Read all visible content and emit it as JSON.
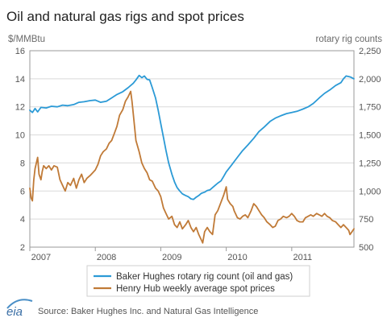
{
  "chart_data": {
    "type": "line",
    "title": "Oil and natural gas rigs and spot prices",
    "ylabel_left": "$/MMBtu",
    "ylabel_right": "rotary rig counts",
    "x_ticks": [
      "2007",
      "2008",
      "2009",
      "2010",
      "2011"
    ],
    "xlim": [
      2007.0,
      2011.95
    ],
    "ylim_left": [
      2,
      16
    ],
    "yticks_left": [
      "2",
      "4",
      "6",
      "8",
      "10",
      "12",
      "14",
      "16"
    ],
    "ylim_right": [
      500,
      2250
    ],
    "yticks_right": [
      "500",
      "750",
      "1,000",
      "1,250",
      "1,500",
      "1,750",
      "2,000",
      "2,250"
    ],
    "grid": true,
    "legend_position": "bottom",
    "series": [
      {
        "name": "Baker Hughes rotary rig count (oil and gas)",
        "axis": "right",
        "color": "#2b9ad6",
        "points": [
          [
            2007.0,
            1720
          ],
          [
            2007.04,
            1700
          ],
          [
            2007.08,
            1735
          ],
          [
            2007.12,
            1705
          ],
          [
            2007.17,
            1745
          ],
          [
            2007.25,
            1740
          ],
          [
            2007.33,
            1755
          ],
          [
            2007.42,
            1750
          ],
          [
            2007.5,
            1765
          ],
          [
            2007.58,
            1760
          ],
          [
            2007.67,
            1770
          ],
          [
            2007.75,
            1790
          ],
          [
            2007.83,
            1795
          ],
          [
            2007.92,
            1805
          ],
          [
            2008.0,
            1810
          ],
          [
            2008.08,
            1790
          ],
          [
            2008.17,
            1800
          ],
          [
            2008.25,
            1830
          ],
          [
            2008.33,
            1860
          ],
          [
            2008.42,
            1885
          ],
          [
            2008.5,
            1920
          ],
          [
            2008.58,
            1960
          ],
          [
            2008.62,
            1990
          ],
          [
            2008.67,
            2030
          ],
          [
            2008.71,
            2010
          ],
          [
            2008.75,
            2025
          ],
          [
            2008.79,
            1995
          ],
          [
            2008.83,
            1990
          ],
          [
            2008.87,
            1920
          ],
          [
            2008.92,
            1830
          ],
          [
            2008.96,
            1720
          ],
          [
            2009.0,
            1600
          ],
          [
            2009.04,
            1480
          ],
          [
            2009.08,
            1360
          ],
          [
            2009.12,
            1250
          ],
          [
            2009.17,
            1150
          ],
          [
            2009.21,
            1080
          ],
          [
            2009.25,
            1030
          ],
          [
            2009.29,
            1000
          ],
          [
            2009.33,
            975
          ],
          [
            2009.38,
            960
          ],
          [
            2009.42,
            950
          ],
          [
            2009.46,
            930
          ],
          [
            2009.5,
            925
          ],
          [
            2009.54,
            945
          ],
          [
            2009.58,
            960
          ],
          [
            2009.62,
            980
          ],
          [
            2009.67,
            990
          ],
          [
            2009.71,
            1005
          ],
          [
            2009.75,
            1010
          ],
          [
            2009.79,
            1030
          ],
          [
            2009.83,
            1050
          ],
          [
            2009.87,
            1070
          ],
          [
            2009.92,
            1090
          ],
          [
            2009.96,
            1130
          ],
          [
            2010.0,
            1170
          ],
          [
            2010.08,
            1230
          ],
          [
            2010.17,
            1300
          ],
          [
            2010.25,
            1360
          ],
          [
            2010.33,
            1410
          ],
          [
            2010.42,
            1470
          ],
          [
            2010.5,
            1530
          ],
          [
            2010.58,
            1570
          ],
          [
            2010.67,
            1620
          ],
          [
            2010.75,
            1650
          ],
          [
            2010.83,
            1670
          ],
          [
            2010.92,
            1690
          ],
          [
            2011.0,
            1700
          ],
          [
            2011.08,
            1710
          ],
          [
            2011.17,
            1730
          ],
          [
            2011.25,
            1750
          ],
          [
            2011.33,
            1780
          ],
          [
            2011.42,
            1830
          ],
          [
            2011.5,
            1870
          ],
          [
            2011.58,
            1900
          ],
          [
            2011.67,
            1940
          ],
          [
            2011.75,
            1965
          ],
          [
            2011.79,
            2000
          ],
          [
            2011.83,
            2025
          ],
          [
            2011.87,
            2020
          ],
          [
            2011.9,
            2015
          ],
          [
            2011.95,
            2000
          ]
        ]
      },
      {
        "name": "Henry Hub weekly average spot prices",
        "axis": "left",
        "color": "#c07a37",
        "points": [
          [
            2007.0,
            6.2
          ],
          [
            2007.02,
            5.5
          ],
          [
            2007.04,
            5.3
          ],
          [
            2007.06,
            6.8
          ],
          [
            2007.08,
            7.6
          ],
          [
            2007.1,
            8.0
          ],
          [
            2007.12,
            8.4
          ],
          [
            2007.14,
            7.2
          ],
          [
            2007.17,
            6.8
          ],
          [
            2007.19,
            7.4
          ],
          [
            2007.21,
            7.8
          ],
          [
            2007.25,
            7.6
          ],
          [
            2007.29,
            7.8
          ],
          [
            2007.33,
            7.5
          ],
          [
            2007.37,
            7.8
          ],
          [
            2007.42,
            7.7
          ],
          [
            2007.46,
            6.8
          ],
          [
            2007.5,
            6.4
          ],
          [
            2007.54,
            6.0
          ],
          [
            2007.58,
            6.6
          ],
          [
            2007.62,
            6.4
          ],
          [
            2007.67,
            6.9
          ],
          [
            2007.71,
            6.2
          ],
          [
            2007.75,
            6.8
          ],
          [
            2007.79,
            7.2
          ],
          [
            2007.83,
            6.6
          ],
          [
            2007.87,
            6.9
          ],
          [
            2007.92,
            7.1
          ],
          [
            2007.96,
            7.3
          ],
          [
            2008.0,
            7.5
          ],
          [
            2008.04,
            7.9
          ],
          [
            2008.08,
            8.5
          ],
          [
            2008.12,
            8.8
          ],
          [
            2008.17,
            9.0
          ],
          [
            2008.21,
            9.4
          ],
          [
            2008.25,
            9.6
          ],
          [
            2008.29,
            10.1
          ],
          [
            2008.33,
            10.6
          ],
          [
            2008.37,
            11.4
          ],
          [
            2008.42,
            11.8
          ],
          [
            2008.46,
            12.4
          ],
          [
            2008.5,
            12.7
          ],
          [
            2008.54,
            13.1
          ],
          [
            2008.56,
            12.4
          ],
          [
            2008.58,
            11.5
          ],
          [
            2008.62,
            9.6
          ],
          [
            2008.67,
            8.8
          ],
          [
            2008.71,
            8.0
          ],
          [
            2008.75,
            7.6
          ],
          [
            2008.79,
            7.3
          ],
          [
            2008.83,
            6.8
          ],
          [
            2008.87,
            6.7
          ],
          [
            2008.92,
            6.2
          ],
          [
            2008.96,
            6.0
          ],
          [
            2009.0,
            5.6
          ],
          [
            2009.04,
            4.8
          ],
          [
            2009.08,
            4.4
          ],
          [
            2009.12,
            4.0
          ],
          [
            2009.17,
            4.2
          ],
          [
            2009.21,
            3.6
          ],
          [
            2009.25,
            3.4
          ],
          [
            2009.29,
            3.8
          ],
          [
            2009.33,
            3.3
          ],
          [
            2009.38,
            3.6
          ],
          [
            2009.42,
            3.9
          ],
          [
            2009.46,
            3.4
          ],
          [
            2009.5,
            3.1
          ],
          [
            2009.54,
            3.4
          ],
          [
            2009.58,
            2.9
          ],
          [
            2009.62,
            2.5
          ],
          [
            2009.64,
            2.3
          ],
          [
            2009.67,
            3.1
          ],
          [
            2009.71,
            3.4
          ],
          [
            2009.75,
            3.1
          ],
          [
            2009.79,
            2.9
          ],
          [
            2009.83,
            4.3
          ],
          [
            2009.87,
            4.6
          ],
          [
            2009.92,
            5.2
          ],
          [
            2009.96,
            5.7
          ],
          [
            2010.0,
            6.3
          ],
          [
            2010.02,
            5.4
          ],
          [
            2010.06,
            5.1
          ],
          [
            2010.1,
            4.9
          ],
          [
            2010.12,
            4.6
          ],
          [
            2010.17,
            4.1
          ],
          [
            2010.21,
            4.0
          ],
          [
            2010.25,
            4.2
          ],
          [
            2010.29,
            4.3
          ],
          [
            2010.33,
            4.1
          ],
          [
            2010.38,
            4.6
          ],
          [
            2010.42,
            5.1
          ],
          [
            2010.46,
            4.9
          ],
          [
            2010.5,
            4.6
          ],
          [
            2010.54,
            4.3
          ],
          [
            2010.58,
            4.1
          ],
          [
            2010.62,
            3.8
          ],
          [
            2010.67,
            3.6
          ],
          [
            2010.71,
            3.4
          ],
          [
            2010.75,
            3.5
          ],
          [
            2010.79,
            3.9
          ],
          [
            2010.83,
            4.0
          ],
          [
            2010.87,
            4.2
          ],
          [
            2010.92,
            4.1
          ],
          [
            2010.96,
            4.2
          ],
          [
            2011.0,
            4.4
          ],
          [
            2011.04,
            4.2
          ],
          [
            2011.08,
            3.9
          ],
          [
            2011.12,
            3.8
          ],
          [
            2011.17,
            3.8
          ],
          [
            2011.21,
            4.1
          ],
          [
            2011.25,
            4.2
          ],
          [
            2011.29,
            4.3
          ],
          [
            2011.33,
            4.2
          ],
          [
            2011.38,
            4.4
          ],
          [
            2011.42,
            4.3
          ],
          [
            2011.46,
            4.2
          ],
          [
            2011.5,
            4.4
          ],
          [
            2011.54,
            4.2
          ],
          [
            2011.58,
            4.1
          ],
          [
            2011.62,
            3.9
          ],
          [
            2011.67,
            3.8
          ],
          [
            2011.71,
            3.6
          ],
          [
            2011.75,
            3.4
          ],
          [
            2011.79,
            3.6
          ],
          [
            2011.83,
            3.4
          ],
          [
            2011.87,
            3.2
          ],
          [
            2011.89,
            2.9
          ],
          [
            2011.92,
            3.1
          ],
          [
            2011.95,
            3.3
          ]
        ]
      }
    ]
  },
  "footer": {
    "logo_text": "eia",
    "source": "Source: Baker Hughes Inc. and Natural Gas Intelligence"
  }
}
